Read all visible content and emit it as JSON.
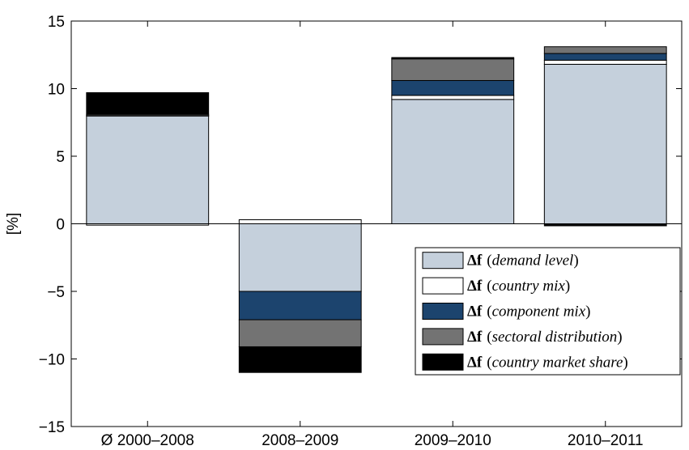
{
  "chart_data": {
    "type": "bar",
    "stacked": true,
    "title": "",
    "xlabel": "",
    "ylabel": "[%]",
    "ylim": [
      -15,
      15
    ],
    "yticks": [
      -15,
      -10,
      -5,
      0,
      5,
      10,
      15
    ],
    "grid": false,
    "legend_position": "bottom-right",
    "categories": [
      "Ø 2000–2008",
      "2008–2009",
      "2009–2010",
      "2010–2011"
    ],
    "series": [
      {
        "name": "demand level",
        "symbol": "Δf",
        "color": "#c5d0dc",
        "values": [
          8.0,
          -5.0,
          9.2,
          11.8
        ]
      },
      {
        "name": "country mix",
        "symbol": "Δf",
        "color": "#ffffff",
        "values": [
          -0.1,
          0.3,
          0.3,
          0.3
        ]
      },
      {
        "name": "component mix",
        "symbol": "Δf",
        "color": "#1c446e",
        "values": [
          0.0,
          -2.1,
          1.1,
          0.5
        ]
      },
      {
        "name": "sectoral distribution",
        "symbol": "Δf",
        "color": "#737373",
        "values": [
          0.1,
          -2.0,
          1.6,
          0.5
        ]
      },
      {
        "name": "country market share",
        "symbol": "Δf",
        "color": "#000000",
        "values": [
          1.6,
          -1.9,
          0.1,
          -0.15
        ]
      }
    ]
  }
}
